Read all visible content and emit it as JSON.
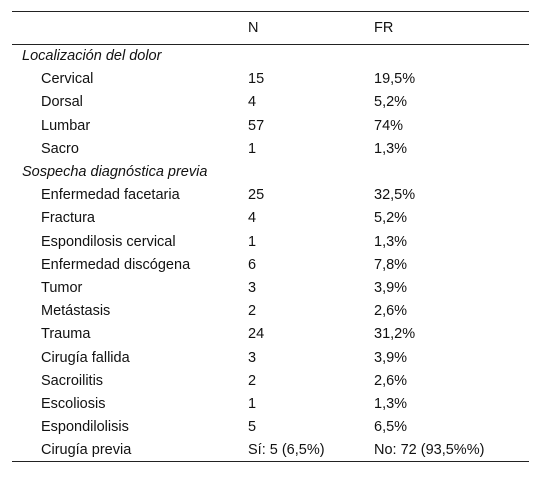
{
  "header": {
    "col1": "",
    "col2": "N",
    "col3": "FR"
  },
  "sections": [
    {
      "title": "Localización del dolor",
      "rows": [
        {
          "label": "Cervical",
          "n": "15",
          "fr": "19,5%"
        },
        {
          "label": "Dorsal",
          "n": "4",
          "fr": "5,2%"
        },
        {
          "label": "Lumbar",
          "n": "57",
          "fr": "74%"
        },
        {
          "label": "Sacro",
          "n": "1",
          "fr": "1,3%"
        }
      ]
    },
    {
      "title": "Sospecha diagnóstica previa",
      "rows": [
        {
          "label": "Enfermedad facetaria",
          "n": "25",
          "fr": "32,5%"
        },
        {
          "label": "Fractura",
          "n": "4",
          "fr": "5,2%"
        },
        {
          "label": "Espondilosis cervical",
          "n": "1",
          "fr": "1,3%"
        },
        {
          "label": "Enfermedad discógena",
          "n": "6",
          "fr": "7,8%"
        },
        {
          "label": "Tumor",
          "n": "3",
          "fr": "3,9%"
        },
        {
          "label": "Metástasis",
          "n": "2",
          "fr": "2,6%"
        },
        {
          "label": "Trauma",
          "n": "24",
          "fr": "31,2%"
        },
        {
          "label": "Cirugía fallida",
          "n": "3",
          "fr": "3,9%"
        },
        {
          "label": "Sacroilitis",
          "n": "2",
          "fr": "2,6%"
        },
        {
          "label": "Escoliosis",
          "n": "1",
          "fr": "1,3%"
        },
        {
          "label": "Espondilolisis",
          "n": "5",
          "fr": "6,5%"
        },
        {
          "label": "Cirugía previa",
          "n": "Sí: 5 (6,5%)",
          "fr": "No: 72 (93,5%%)"
        }
      ]
    }
  ]
}
